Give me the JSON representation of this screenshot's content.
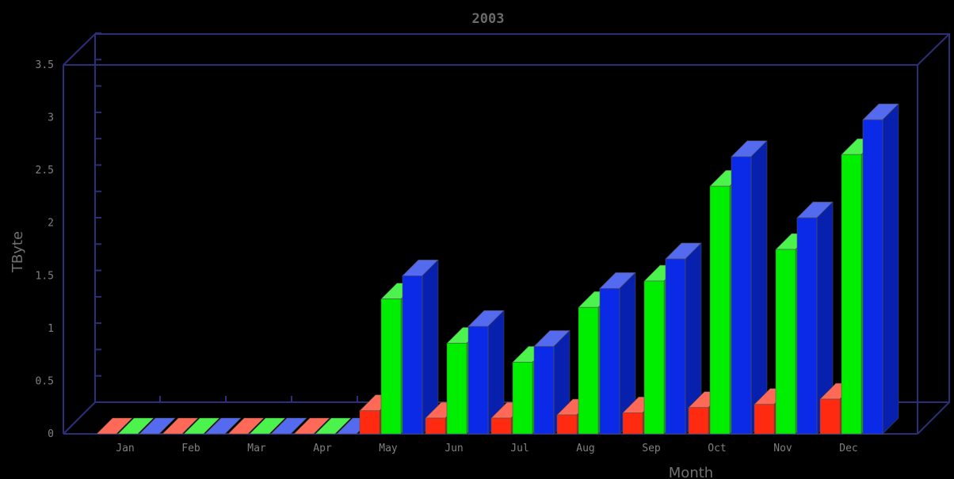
{
  "chart_data": {
    "type": "bar",
    "title": "2003",
    "xlabel": "Month",
    "ylabel": "TByte",
    "ylim": [
      0,
      3.5
    ],
    "yticks": [
      "0",
      "0.5",
      "1",
      "1.5",
      "2",
      "2.5",
      "3",
      "3.5"
    ],
    "categories": [
      "Jan",
      "Feb",
      "Mar",
      "Apr",
      "May",
      "Jun",
      "Jul",
      "Aug",
      "Sep",
      "Oct",
      "Nov",
      "Dec"
    ],
    "series": [
      {
        "color": "#ff2a10",
        "values": [
          0,
          0,
          0,
          0,
          0.22,
          0.15,
          0.15,
          0.18,
          0.2,
          0.25,
          0.28,
          0.33
        ]
      },
      {
        "color": "#00ee00",
        "values": [
          0,
          0,
          0,
          0,
          1.28,
          0.86,
          0.68,
          1.2,
          1.45,
          2.35,
          1.75,
          2.65
        ]
      },
      {
        "color": "#0a2ae8",
        "values": [
          0,
          0,
          0,
          0,
          1.5,
          1.02,
          0.83,
          1.38,
          1.66,
          2.63,
          2.05,
          2.98
        ]
      }
    ],
    "grid": false,
    "legend": "none",
    "frame_color": "#2c2f78"
  }
}
